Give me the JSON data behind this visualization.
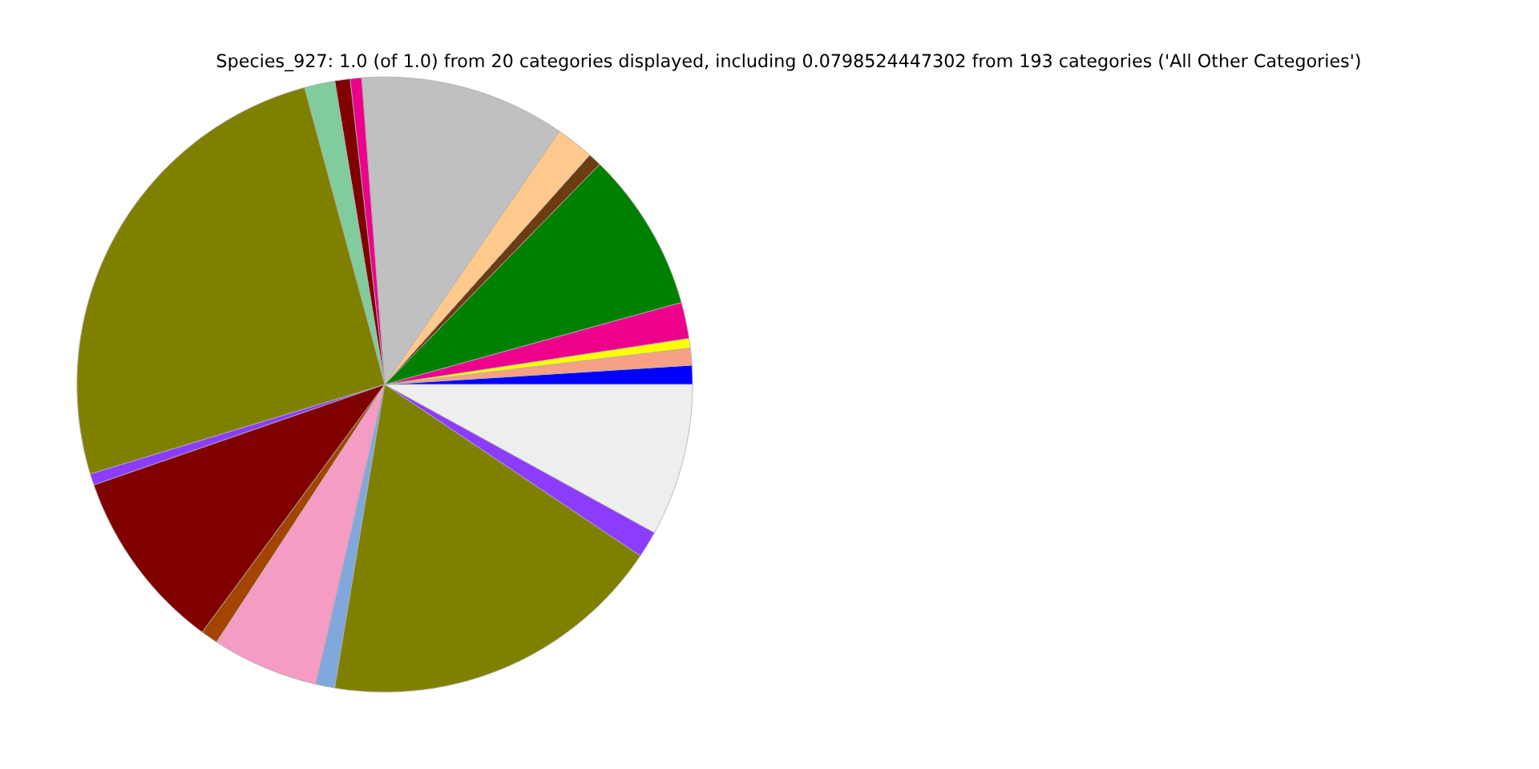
{
  "chart_data": {
    "type": "pie",
    "title": "Species_927: 1.0 (of 1.0) from 20 categories displayed, including 0.0798524447302 from 193 categories ('All Other Categories')",
    "categories": [
      null,
      null,
      null,
      null,
      null,
      null,
      null,
      null,
      null,
      null,
      null,
      null,
      null,
      null,
      null,
      null,
      null,
      null,
      null,
      null
    ],
    "values": [
      1.0,
      0.9,
      0.5,
      1.9,
      8.4,
      0.7,
      2.0,
      10.8,
      0.6,
      0.8,
      1.6,
      25.5,
      0.6,
      9.6,
      0.9,
      5.6,
      1.0,
      18.2,
      1.4,
      8.0
    ],
    "colors": [
      "#0000ff",
      "#f7a085",
      "#ffff00",
      "#ec008c",
      "#008000",
      "#6b3d10",
      "#ffc88c",
      "#c0c0c0",
      "#ec008c",
      "#800000",
      "#80cc9c",
      "#808000",
      "#8c3cff",
      "#800000",
      "#a34400",
      "#f49cc4",
      "#80a8dc",
      "#808000",
      "#8c3cff",
      "#eeeeee"
    ]
  }
}
